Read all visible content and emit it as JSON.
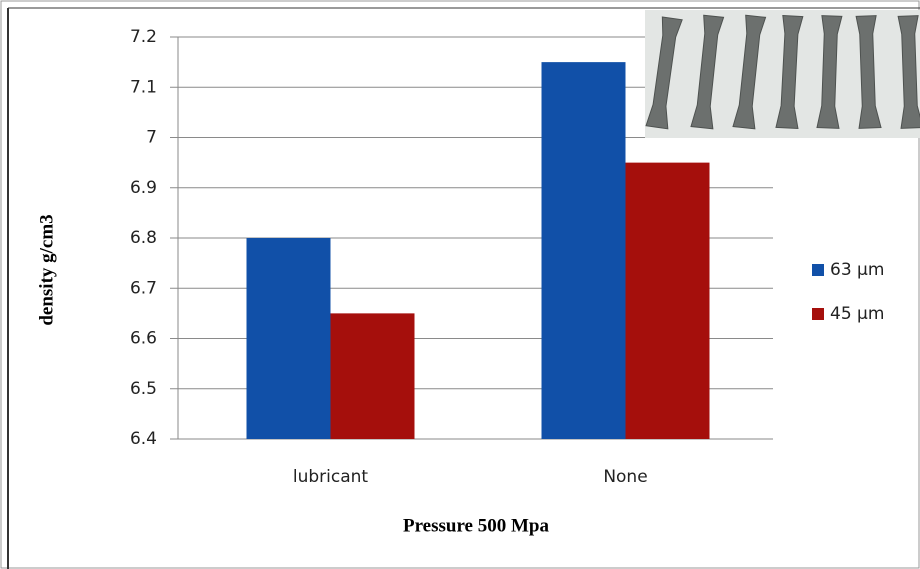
{
  "chart_data": {
    "type": "bar",
    "categories": [
      "lubricant",
      "None"
    ],
    "series": [
      {
        "name": "63 µm",
        "color": "#1150a8",
        "values": [
          6.8,
          7.15
        ]
      },
      {
        "name": "45 µm",
        "color": "#a50f0c",
        "values": [
          6.65,
          6.95
        ]
      }
    ],
    "ylim": [
      6.4,
      7.2
    ],
    "yticks": [
      6.4,
      6.5,
      6.6,
      6.7,
      6.8,
      6.9,
      7,
      7.1,
      7.2
    ],
    "y_label": "density g/cm3",
    "x_label": "Pressure 500 Mpa",
    "grid": true,
    "legend": "right"
  }
}
